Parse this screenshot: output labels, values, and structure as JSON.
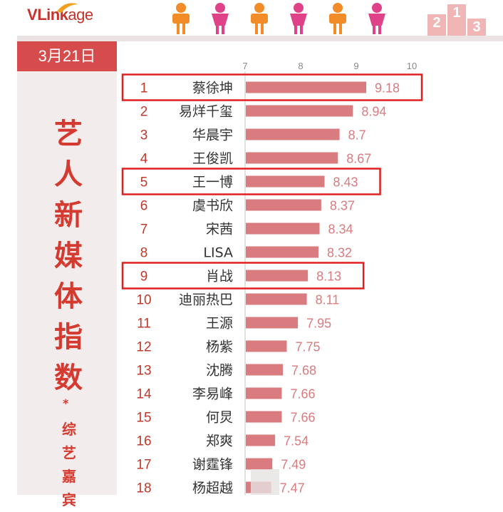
{
  "logo": {
    "text_v": "V",
    "text_link": "Link",
    "text_age": "age"
  },
  "date": "3月21日",
  "side_title": "艺人新媒体指数",
  "side_star": "*",
  "side_subtitle": "综艺嘉宾",
  "colors": {
    "bar": "#d97b7f",
    "rank": "#c0392b",
    "highlight": "#e02020",
    "people_male": "#f28c28",
    "people_female": "#e0428a",
    "podium": "#f0b6b6"
  },
  "icons": [
    "male-person-icon",
    "female-person-icon",
    "male-person-icon",
    "female-person-icon",
    "male-person-icon",
    "female-person-icon",
    "podium-icon"
  ],
  "podium_labels": [
    "2",
    "1",
    "3"
  ],
  "chart_data": {
    "type": "bar",
    "orientation": "horizontal",
    "xlim": [
      7,
      10
    ],
    "xticks": [
      7,
      8,
      9,
      10
    ],
    "grid": false,
    "rows": [
      {
        "rank": "1",
        "name": "蔡徐坤",
        "value": 9.18,
        "label": "9.18",
        "highlighted": true
      },
      {
        "rank": "2",
        "name": "易烊千玺",
        "value": 8.94,
        "label": "8.94",
        "highlighted": false
      },
      {
        "rank": "3",
        "name": "华晨宇",
        "value": 8.7,
        "label": "8.7",
        "highlighted": false
      },
      {
        "rank": "4",
        "name": "王俊凯",
        "value": 8.67,
        "label": "8.67",
        "highlighted": false
      },
      {
        "rank": "5",
        "name": "王一博",
        "value": 8.43,
        "label": "8.43",
        "highlighted": true
      },
      {
        "rank": "6",
        "name": "虞书欣",
        "value": 8.37,
        "label": "8.37",
        "highlighted": false
      },
      {
        "rank": "7",
        "name": "宋茜",
        "value": 8.34,
        "label": "8.34",
        "highlighted": false
      },
      {
        "rank": "8",
        "name": "LISA",
        "value": 8.32,
        "label": "8.32",
        "highlighted": false
      },
      {
        "rank": "9",
        "name": "肖战",
        "value": 8.13,
        "label": "8.13",
        "highlighted": true
      },
      {
        "rank": "10",
        "name": "迪丽热巴",
        "value": 8.11,
        "label": "8.11",
        "highlighted": false
      },
      {
        "rank": "11",
        "name": "王源",
        "value": 7.95,
        "label": "7.95",
        "highlighted": false
      },
      {
        "rank": "12",
        "name": "杨紫",
        "value": 7.75,
        "label": "7.75",
        "highlighted": false
      },
      {
        "rank": "13",
        "name": "沈腾",
        "value": 7.68,
        "label": "7.68",
        "highlighted": false
      },
      {
        "rank": "14",
        "name": "李易峰",
        "value": 7.66,
        "label": "7.66",
        "highlighted": false
      },
      {
        "rank": "15",
        "name": "何炅",
        "value": 7.66,
        "label": "7.66",
        "highlighted": false
      },
      {
        "rank": "16",
        "name": "郑爽",
        "value": 7.54,
        "label": "7.54",
        "highlighted": false
      },
      {
        "rank": "17",
        "name": "谢霆锋",
        "value": 7.49,
        "label": "7.49",
        "highlighted": false
      },
      {
        "rank": "18",
        "name": "杨超越",
        "value": 7.47,
        "label": "7.47",
        "highlighted": false
      }
    ]
  }
}
